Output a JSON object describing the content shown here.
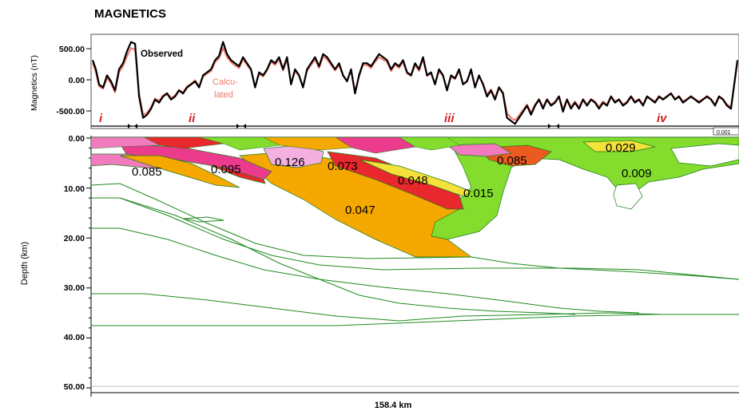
{
  "title": "MAGNETICS",
  "chart_data": [
    {
      "type": "line",
      "ylabel": "Magnetics (nT)",
      "yticks": [
        "500.00",
        "0.00",
        "-500.00"
      ],
      "ylim": [
        -750,
        750
      ],
      "legend": [
        {
          "name": "Observed",
          "color": "#000000"
        },
        {
          "name": "Calcu-\nlated",
          "color": "#f07868"
        }
      ],
      "series": [
        {
          "name": "Observed",
          "color": "#000000",
          "x": [
            0,
            4,
            8,
            13,
            18,
            23,
            28,
            33,
            38,
            43,
            48,
            53,
            58,
            63,
            68,
            73,
            78,
            83,
            88,
            93,
            98,
            103,
            108,
            113,
            118,
            123,
            128,
            133,
            138,
            143,
            148,
            153,
            158,
            163,
            168,
            173,
            178,
            183,
            188,
            193,
            198,
            203,
            208,
            213,
            218,
            223,
            228,
            233,
            238,
            243,
            248,
            253,
            258,
            263,
            268,
            273,
            278,
            283,
            288,
            293,
            298,
            303,
            308,
            313,
            318,
            323,
            328,
            333,
            338,
            343,
            348,
            353,
            358,
            363,
            368,
            373,
            378,
            383,
            388,
            393,
            398,
            403,
            408,
            413,
            418,
            423,
            428,
            433,
            438,
            443,
            448,
            453,
            458,
            463,
            468,
            473,
            478,
            483,
            488,
            493,
            498,
            503,
            508,
            513,
            518,
            523,
            528,
            533,
            538,
            543,
            548,
            553,
            558,
            563,
            568,
            573,
            578,
            583,
            588,
            593,
            598,
            603,
            608,
            613,
            618,
            623,
            628,
            633,
            638,
            643,
            648,
            653,
            658,
            663,
            668,
            673,
            678,
            683,
            688,
            693,
            698,
            703,
            708,
            713,
            718,
            723,
            728,
            733,
            738,
            743,
            748,
            753,
            758,
            763,
            768,
            773,
            778,
            783,
            788,
            793,
            798,
            806
          ],
          "values": [
            350,
            200,
            -50,
            -100,
            100,
            0,
            -150,
            200,
            300,
            500,
            650,
            620,
            -250,
            -600,
            -550,
            -450,
            -300,
            -350,
            -250,
            -200,
            -300,
            -250,
            -150,
            -200,
            -100,
            -50,
            0,
            -100,
            100,
            150,
            200,
            350,
            420,
            650,
            450,
            350,
            300,
            250,
            400,
            300,
            200,
            -100,
            150,
            100,
            200,
            350,
            300,
            400,
            200,
            400,
            -50,
            200,
            100,
            -100,
            200,
            300,
            400,
            250,
            450,
            400,
            300,
            200,
            300,
            100,
            0,
            200,
            -200,
            100,
            300,
            300,
            250,
            350,
            450,
            400,
            350,
            200,
            300,
            250,
            350,
            150,
            100,
            300,
            200,
            400,
            100,
            150,
            -50,
            200,
            100,
            -150,
            100,
            50,
            200,
            -50,
            0,
            200,
            -100,
            100,
            -50,
            -250,
            -150,
            -300,
            -100,
            -200,
            -600,
            -650,
            -700,
            -600,
            -500,
            -400,
            -550,
            -400,
            -300,
            -450,
            -300,
            -400,
            -350,
            -250,
            -500,
            -300,
            -450,
            -350,
            -450,
            -300,
            -400,
            -300,
            -350,
            -450,
            -350,
            -400,
            -250,
            -350,
            -300,
            -400,
            -350,
            -250,
            -350,
            -300,
            -400,
            -250,
            -300,
            -350,
            -250,
            -300,
            -250,
            -200,
            -300,
            -250,
            -350,
            -300,
            -250,
            -300,
            -350,
            -300,
            -250,
            -300,
            -400,
            -250,
            -300,
            -400,
            -450,
            350
          ]
        },
        {
          "name": "Calcu-\nlated",
          "color": "#f07868",
          "x": [
            0,
            4,
            8,
            13,
            18,
            23,
            28,
            33,
            38,
            43,
            48,
            53,
            58,
            63,
            68,
            73,
            78,
            83,
            88,
            93,
            98,
            103,
            108,
            113,
            118,
            123,
            128,
            133,
            138,
            143,
            148,
            153,
            158,
            163,
            168,
            173,
            178,
            183,
            188,
            193,
            198,
            203,
            208,
            213,
            218,
            223,
            228,
            233,
            238,
            243,
            248,
            253,
            258,
            263,
            268,
            273,
            278,
            283,
            288,
            293,
            298,
            303,
            308,
            313,
            318,
            323,
            328,
            333,
            338,
            343,
            348,
            353,
            358,
            363,
            368,
            373,
            378,
            383,
            388,
            393,
            398,
            403,
            408,
            413,
            418,
            423,
            428,
            433,
            438,
            443,
            448,
            453,
            458,
            463,
            468,
            473,
            478,
            483,
            488,
            493,
            498,
            503,
            508,
            513,
            518,
            523,
            528,
            533,
            538,
            543,
            548,
            553,
            558,
            563,
            568,
            573,
            578,
            583,
            588,
            593,
            598,
            603,
            608,
            613,
            618,
            623,
            628,
            633,
            638,
            643,
            648,
            653,
            658,
            663,
            668,
            673,
            678,
            683,
            688,
            693,
            698,
            703,
            708,
            713,
            718,
            723,
            728,
            733,
            738,
            743,
            748,
            753,
            758,
            763,
            768,
            773,
            778,
            783,
            788,
            793,
            798,
            806
          ],
          "values": [
            300,
            150,
            -80,
            -120,
            60,
            -40,
            -180,
            150,
            250,
            420,
            550,
            520,
            -200,
            -550,
            -520,
            -420,
            -280,
            -320,
            -230,
            -190,
            -270,
            -230,
            -140,
            -180,
            -80,
            -40,
            20,
            -80,
            80,
            130,
            170,
            320,
            380,
            550,
            400,
            320,
            260,
            220,
            360,
            270,
            180,
            -80,
            120,
            80,
            180,
            320,
            270,
            360,
            180,
            360,
            -30,
            170,
            90,
            -80,
            170,
            270,
            360,
            220,
            410,
            360,
            270,
            180,
            270,
            90,
            20,
            170,
            -160,
            80,
            270,
            270,
            220,
            320,
            400,
            360,
            320,
            170,
            270,
            220,
            320,
            130,
            90,
            270,
            170,
            360,
            90,
            130,
            -30,
            170,
            90,
            -120,
            80,
            40,
            170,
            -40,
            10,
            170,
            -80,
            80,
            -30,
            -220,
            -130,
            -270,
            -90,
            -180,
            -520,
            -600,
            -640,
            -560,
            -470,
            -380,
            -510,
            -380,
            -290,
            -420,
            -290,
            -380,
            -330,
            -240,
            -460,
            -290,
            -420,
            -330,
            -420,
            -290,
            -380,
            -290,
            -330,
            -420,
            -330,
            -380,
            -240,
            -330,
            -290,
            -380,
            -330,
            -240,
            -330,
            -290,
            -380,
            -240,
            -290,
            -330,
            -240,
            -290,
            -240,
            -190,
            -290,
            -240,
            -330,
            -290,
            -240,
            -290,
            -330,
            -290,
            -240,
            -290,
            -380,
            -240,
            -290,
            -380,
            -420,
            300
          ]
        }
      ],
      "annotations": [
        "i",
        "ii",
        "iii",
        "iv"
      ],
      "corner_label": "0.001"
    },
    {
      "type": "area",
      "title": "",
      "ylabel": "Depth (km)",
      "xlabel": "158.4 km",
      "yticks": [
        "0.00",
        "10.00",
        "20.00",
        "30.00",
        "40.00",
        "50.00"
      ],
      "ylim": [
        0,
        50
      ],
      "units": [
        {
          "label": "0.085",
          "color": "#f47ac0"
        },
        {
          "label": "0.095",
          "color": "#ec3a8c"
        },
        {
          "label": "0.126",
          "color": "#f4b0e0"
        },
        {
          "label": "0.073",
          "color": "#e8282c"
        },
        {
          "label": "0.048",
          "color": "#f5a800"
        },
        {
          "label": "0.047",
          "color": "#f5a800"
        },
        {
          "label": "0.015",
          "color": "#84dc2c"
        },
        {
          "label": "0.085",
          "color": "#f47ac0"
        },
        {
          "label": "0.029",
          "color": "#84dc2c"
        },
        {
          "label": "0.009",
          "color": "#84dc2c"
        }
      ]
    }
  ]
}
